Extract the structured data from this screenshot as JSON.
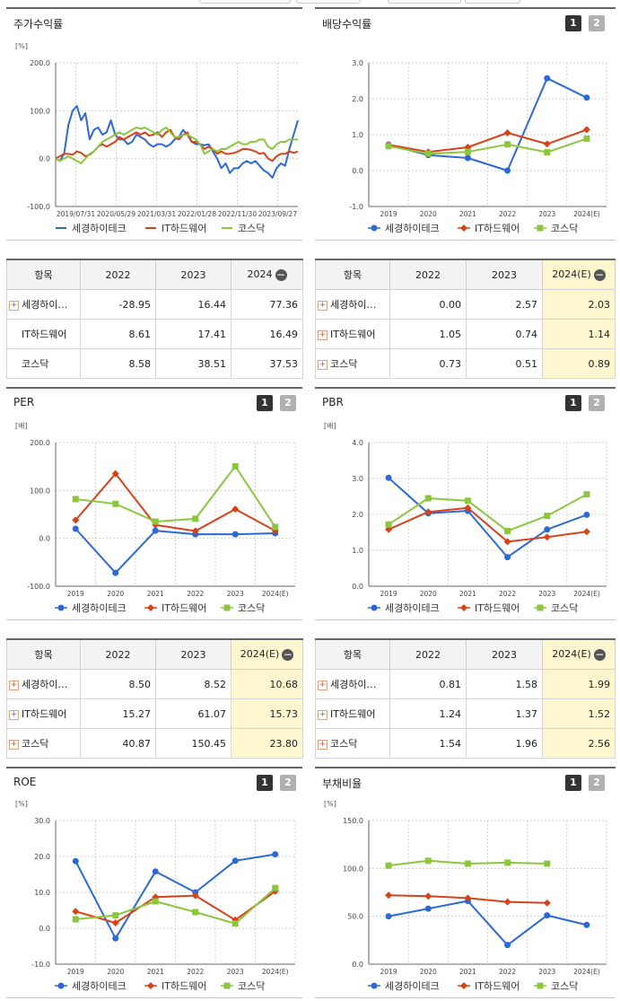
{
  "colors": {
    "s0": "#2d69d6",
    "s1": "#d6421a",
    "s2": "#8cc63f",
    "axis": "#333333",
    "grid": "#d0d0d0"
  },
  "legend_names": [
    "세경하이테크",
    "IT하드웨어",
    "코스닥"
  ],
  "legend_marker_icons": [
    "line-icon",
    "circle-icon",
    "square-icon"
  ],
  "buttons": {
    "one": "1",
    "two": "2"
  },
  "table_controls": {
    "collapse": "−",
    "expand": "+"
  },
  "panels": {
    "price": {
      "title": "주가수익률",
      "chart_data": {
        "type": "line",
        "unit": "[%]",
        "y_ticks": [
          "200.0",
          "100.0",
          "0.0",
          "-100.0"
        ],
        "ylim": [
          -100,
          200
        ],
        "x_tick_labels": [
          "2019/07/31",
          "2020/05/29",
          "2021/03/31",
          "2022/01/28",
          "2022/11/30",
          "2023/09/27"
        ],
        "series": [
          {
            "name": "세경하이테크",
            "values": [
              0,
              -5,
              10,
              70,
              100,
              110,
              80,
              95,
              40,
              60,
              65,
              50,
              55,
              80,
              50,
              40,
              40,
              30,
              35,
              50,
              45,
              40,
              30,
              25,
              30,
              30,
              25,
              30,
              40,
              45,
              60,
              50,
              35,
              30,
              30,
              28,
              30,
              15,
              0,
              -20,
              -10,
              -30,
              -20,
              -20,
              -10,
              -5,
              -10,
              -5,
              -15,
              -25,
              -30,
              -40,
              -20,
              -10,
              -15,
              20,
              50,
              80
            ]
          },
          {
            "name": "IT하드웨어",
            "values": [
              0,
              5,
              10,
              10,
              8,
              15,
              12,
              5,
              8,
              15,
              25,
              30,
              25,
              30,
              35,
              45,
              40,
              45,
              50,
              55,
              50,
              55,
              48,
              50,
              55,
              45,
              55,
              60,
              45,
              40,
              50,
              55,
              35,
              35,
              30,
              20,
              25,
              20,
              10,
              15,
              10,
              10,
              12,
              15,
              20,
              20,
              18,
              15,
              10,
              12,
              0,
              -5,
              5,
              10,
              10,
              15,
              12,
              15
            ]
          },
          {
            "name": "코스닥",
            "values": [
              0,
              -5,
              0,
              5,
              0,
              -5,
              -10,
              0,
              10,
              15,
              25,
              35,
              40,
              45,
              50,
              55,
              50,
              55,
              60,
              65,
              62,
              65,
              60,
              55,
              50,
              60,
              65,
              55,
              45,
              45,
              50,
              50,
              45,
              40,
              30,
              10,
              15,
              20,
              15,
              20,
              20,
              25,
              30,
              35,
              30,
              30,
              35,
              35,
              40,
              40,
              25,
              20,
              30,
              35,
              35,
              40,
              40,
              40
            ]
          }
        ]
      }
    },
    "dividend": {
      "title": "배당수익률",
      "chart_data": {
        "type": "line",
        "y_ticks": [
          "3.0",
          "2.0",
          "1.0",
          "0.0",
          "-1.0"
        ],
        "ylim": [
          -1,
          3
        ],
        "categories": [
          "2019",
          "2020",
          "2021",
          "2022",
          "2023",
          "2024(E)"
        ],
        "series": [
          {
            "name": "세경하이테크",
            "values": [
              0.72,
              0.43,
              0.35,
              0.0,
              2.57,
              2.03
            ]
          },
          {
            "name": "IT하드웨어",
            "values": [
              0.72,
              0.52,
              0.65,
              1.05,
              0.74,
              1.14
            ]
          },
          {
            "name": "코스닥",
            "values": [
              0.68,
              0.47,
              0.52,
              0.73,
              0.51,
              0.89
            ]
          }
        ]
      }
    },
    "per": {
      "title": "PER",
      "chart_data": {
        "type": "line",
        "unit": "[배]",
        "y_ticks": [
          "200.0",
          "100.0",
          "0.0",
          "-100.0"
        ],
        "ylim": [
          -100,
          200
        ],
        "categories": [
          "2019",
          "2020",
          "2021",
          "2022",
          "2023",
          "2024(E)"
        ],
        "series": [
          {
            "name": "세경하이테크",
            "values": [
              20,
              -72,
              16,
              8.5,
              8.52,
              10.68
            ]
          },
          {
            "name": "IT하드웨어",
            "values": [
              38,
              135,
              28,
              15.27,
              61.07,
              15.73
            ]
          },
          {
            "name": "코스닥",
            "values": [
              82,
              72,
              35,
              40.87,
              150.45,
              23.8
            ]
          }
        ]
      }
    },
    "pbr": {
      "title": "PBR",
      "chart_data": {
        "type": "line",
        "unit": "[배]",
        "y_ticks": [
          "4.0",
          "3.0",
          "2.0",
          "1.0",
          "0.0"
        ],
        "ylim": [
          0,
          4
        ],
        "categories": [
          "2019",
          "2020",
          "2021",
          "2022",
          "2023",
          "2024(E)"
        ],
        "series": [
          {
            "name": "세경하이테크",
            "values": [
              3.02,
              2.03,
              2.1,
              0.81,
              1.58,
              1.99
            ]
          },
          {
            "name": "IT하드웨어",
            "values": [
              1.58,
              2.07,
              2.18,
              1.24,
              1.37,
              1.52
            ]
          },
          {
            "name": "코스닥",
            "values": [
              1.72,
              2.45,
              2.38,
              1.54,
              1.96,
              2.56
            ]
          }
        ]
      }
    },
    "roe": {
      "title": "ROE",
      "chart_data": {
        "type": "line",
        "unit": "[%]",
        "y_ticks": [
          "30.0",
          "20.0",
          "10.0",
          "0.0",
          "-10.0"
        ],
        "ylim": [
          -10,
          30
        ],
        "categories": [
          "2019",
          "2020",
          "2021",
          "2022",
          "2023",
          "2024(E)"
        ],
        "series": [
          {
            "name": "세경하이테크",
            "values": [
              18.7,
              -2.8,
              15.8,
              10.0,
              18.8,
              20.6
            ]
          },
          {
            "name": "IT하드웨어",
            "values": [
              4.7,
              1.5,
              8.7,
              9.1,
              2.3,
              10.3
            ]
          },
          {
            "name": "코스닥",
            "values": [
              2.5,
              3.6,
              7.5,
              4.5,
              1.3,
              11.2
            ]
          }
        ]
      }
    },
    "debt": {
      "title": "부채비율",
      "chart_data": {
        "type": "line",
        "unit": "[%]",
        "y_ticks": [
          "150.0",
          "100.0",
          "50.0",
          "0.0"
        ],
        "ylim": [
          0,
          150
        ],
        "categories": [
          "2019",
          "2020",
          "2021",
          "2022",
          "2023",
          "2024(E)"
        ],
        "series": [
          {
            "name": "세경하이테크",
            "values": [
              50,
              58,
              66,
              20,
              51,
              41
            ]
          },
          {
            "name": "IT하드웨어",
            "values": [
              72,
              71,
              69,
              65,
              64,
              null
            ]
          },
          {
            "name": "코스닥",
            "values": [
              103,
              108,
              105,
              106,
              105,
              null
            ]
          }
        ]
      }
    }
  },
  "tables": {
    "price": {
      "headers": [
        "항목",
        "2022",
        "2023",
        "2024"
      ],
      "rows": [
        {
          "name": "세경하이…",
          "plus": true,
          "values": [
            "-28.95",
            "16.44",
            "77.36"
          ]
        },
        {
          "name": "IT하드웨어",
          "plus": false,
          "values": [
            "8.61",
            "17.41",
            "16.49"
          ]
        },
        {
          "name": "코스닥",
          "plus": false,
          "values": [
            "8.58",
            "38.51",
            "37.53"
          ]
        }
      ]
    },
    "dividend": {
      "headers": [
        "항목",
        "2022",
        "2023",
        "2024(E)"
      ],
      "rows": [
        {
          "name": "세경하이…",
          "plus": true,
          "values": [
            "0.00",
            "2.57",
            "2.03"
          ]
        },
        {
          "name": "IT하드웨어",
          "plus": true,
          "values": [
            "1.05",
            "0.74",
            "1.14"
          ]
        },
        {
          "name": "코스닥",
          "plus": true,
          "values": [
            "0.73",
            "0.51",
            "0.89"
          ]
        }
      ]
    },
    "per": {
      "headers": [
        "항목",
        "2022",
        "2023",
        "2024(E)"
      ],
      "rows": [
        {
          "name": "세경하이…",
          "plus": true,
          "values": [
            "8.50",
            "8.52",
            "10.68"
          ]
        },
        {
          "name": "IT하드웨어",
          "plus": true,
          "values": [
            "15.27",
            "61.07",
            "15.73"
          ]
        },
        {
          "name": "코스닥",
          "plus": true,
          "values": [
            "40.87",
            "150.45",
            "23.80"
          ]
        }
      ]
    },
    "pbr": {
      "headers": [
        "항목",
        "2022",
        "2023",
        "2024(E)"
      ],
      "rows": [
        {
          "name": "세경하이…",
          "plus": true,
          "values": [
            "0.81",
            "1.58",
            "1.99"
          ]
        },
        {
          "name": "IT하드웨어",
          "plus": true,
          "values": [
            "1.24",
            "1.37",
            "1.52"
          ]
        },
        {
          "name": "코스닥",
          "plus": true,
          "values": [
            "1.54",
            "1.96",
            "2.56"
          ]
        }
      ]
    }
  }
}
